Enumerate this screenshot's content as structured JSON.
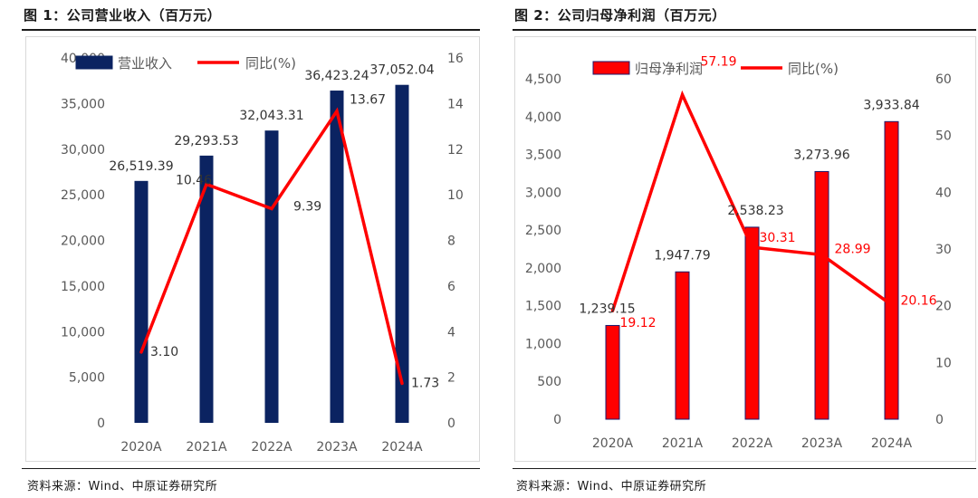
{
  "source_label": "资料来源：Wind、中原证券研究所",
  "chart_data": [
    {
      "type": "bar",
      "title": "图 1：公司营业收入（百万元）",
      "source": "资料来源：Wind、中原证券研究所",
      "categories": [
        "2020A",
        "2021A",
        "2022A",
        "2023A",
        "2024A"
      ],
      "bar_color": "#0b2361",
      "line_color": "#ff0000",
      "value_label_color": "#333333",
      "line_label_color": "#333333",
      "legend_position": "top",
      "grid": false,
      "series": [
        {
          "name": "营业收入",
          "type": "bar",
          "axis": "left",
          "values": [
            26519.39,
            29293.53,
            32043.31,
            36423.24,
            37052.04
          ],
          "labels": [
            "26,519.39",
            "29,293.53",
            "32,043.31",
            "36,423.24",
            "37,052.04"
          ]
        },
        {
          "name": "同比(%)",
          "type": "line",
          "axis": "right",
          "values": [
            3.1,
            10.46,
            9.39,
            13.67,
            1.73
          ],
          "labels": [
            "3.10",
            "10.46",
            "9.39",
            "13.67",
            "1.73"
          ]
        }
      ],
      "y_left": {
        "min": 0,
        "max": 40000,
        "ticks": [
          0,
          5000,
          10000,
          15000,
          20000,
          25000,
          30000,
          35000,
          40000
        ],
        "tick_labels": [
          "0",
          "5,000",
          "10,000",
          "15,000",
          "20,000",
          "25,000",
          "30,000",
          "35,000",
          "40,000"
        ]
      },
      "y_right": {
        "min": 0,
        "max": 16,
        "ticks": [
          0,
          2,
          4,
          6,
          8,
          10,
          12,
          14,
          16
        ],
        "tick_labels": [
          "0",
          "2",
          "4",
          "6",
          "8",
          "10",
          "12",
          "14",
          "16"
        ]
      }
    },
    {
      "type": "bar",
      "title": "图 2：公司归母净利润（百万元）",
      "source": "资料来源：Wind、中原证券研究所",
      "categories": [
        "2020A",
        "2021A",
        "2022A",
        "2023A",
        "2024A"
      ],
      "bar_color": "#ff0000",
      "bar_edge_color": "#1a1a6e",
      "line_color": "#ff0000",
      "value_label_color": "#333333",
      "line_label_color": "#ff0000",
      "legend_position": "top",
      "grid": false,
      "series": [
        {
          "name": "归母净利润",
          "type": "bar",
          "axis": "left",
          "values": [
            1239.15,
            1947.79,
            2538.23,
            3273.96,
            3933.84
          ],
          "labels": [
            "1,239.15",
            "1,947.79",
            "2,538.23",
            "3,273.96",
            "3,933.84"
          ]
        },
        {
          "name": "同比(%)",
          "type": "line",
          "axis": "right",
          "values": [
            19.12,
            57.19,
            30.31,
            28.99,
            20.16
          ],
          "labels": [
            "19.12",
            "57.19",
            "30.31",
            "28.99",
            "20.16"
          ]
        }
      ],
      "y_left": {
        "min": 0,
        "max": 4500,
        "ticks": [
          0,
          500,
          1000,
          1500,
          2000,
          2500,
          3000,
          3500,
          4000,
          4500
        ],
        "tick_labels": [
          "0",
          "500",
          "1,000",
          "1,500",
          "2,000",
          "2,500",
          "3,000",
          "3,500",
          "4,000",
          "4,500"
        ]
      },
      "y_right": {
        "min": 0,
        "max": 60,
        "ticks": [
          0,
          10,
          20,
          30,
          40,
          50,
          60
        ],
        "tick_labels": [
          "0",
          "10",
          "20",
          "30",
          "40",
          "50",
          "60"
        ]
      }
    }
  ]
}
